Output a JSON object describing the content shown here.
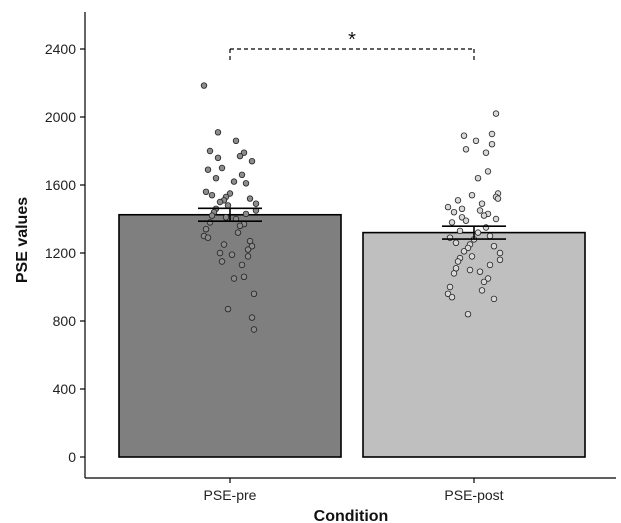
{
  "chart_data": {
    "type": "bar",
    "title": "",
    "xlabel": "Condition",
    "ylabel": "PSE values",
    "ylim": [
      0,
      2500
    ],
    "yticks": [
      0,
      400,
      800,
      1200,
      1600,
      2000,
      2400
    ],
    "ytick_labels": [
      "0",
      "400",
      "800",
      "1200",
      "1600",
      "2000",
      "2400"
    ],
    "grid": false,
    "categories": [
      "PSE-pre",
      "PSE-post"
    ],
    "values": [
      1425,
      1320
    ],
    "error": [
      38,
      38
    ],
    "bar_colors": [
      "#7f7f7f",
      "#bfbfbf"
    ],
    "point_colors": [
      "#8c8c8c",
      "#d9d9d9"
    ],
    "significance": {
      "label": "*",
      "between": [
        "PSE-pre",
        "PSE-post"
      ],
      "y": 2400
    },
    "points": [
      [
        2185,
        1910,
        1860,
        1800,
        1790,
        1770,
        1760,
        1740,
        1700,
        1690,
        1660,
        1640,
        1620,
        1610,
        1560,
        1550,
        1540,
        1530,
        1520,
        1510,
        1500,
        1490,
        1480,
        1460,
        1450,
        1440,
        1430,
        1420,
        1410,
        1400,
        1380,
        1370,
        1360,
        1340,
        1320,
        1300,
        1290,
        1270,
        1250,
        1240,
        1220,
        1200,
        1190,
        1180,
        1150,
        1130,
        1060,
        1050,
        960,
        870,
        820,
        750
      ],
      [
        2020,
        1900,
        1890,
        1860,
        1840,
        1810,
        1790,
        1680,
        1640,
        1550,
        1540,
        1530,
        1520,
        1510,
        1490,
        1470,
        1460,
        1450,
        1440,
        1430,
        1420,
        1410,
        1400,
        1390,
        1380,
        1350,
        1330,
        1320,
        1300,
        1290,
        1280,
        1260,
        1250,
        1240,
        1230,
        1210,
        1200,
        1180,
        1170,
        1160,
        1150,
        1130,
        1110,
        1100,
        1090,
        1080,
        1050,
        1030,
        1000,
        980,
        960,
        940,
        930,
        840
      ]
    ]
  }
}
